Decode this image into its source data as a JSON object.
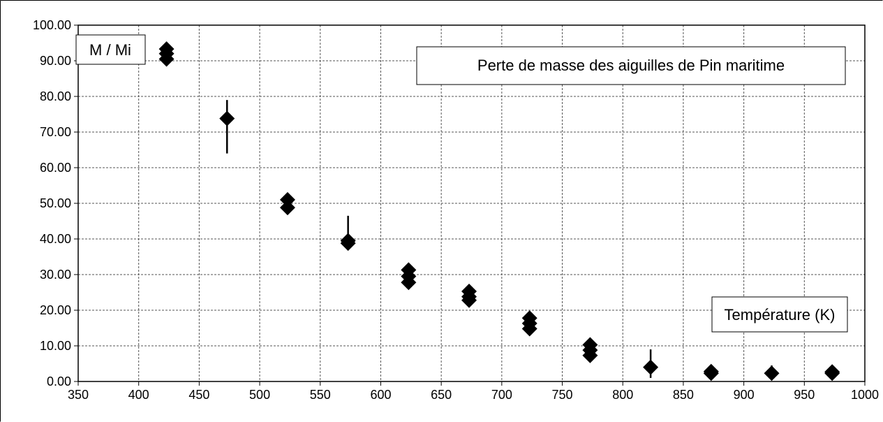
{
  "chart_data": {
    "type": "scatter",
    "title": "Perte de masse des aiguilles de Pin maritime",
    "xlabel": "Température (K)",
    "ylabel": "M / Mi",
    "xlim": [
      350,
      1000
    ],
    "ylim": [
      0,
      100
    ],
    "grid": true,
    "x_ticks": [
      "350",
      "400",
      "450",
      "500",
      "550",
      "600",
      "650",
      "700",
      "750",
      "800",
      "850",
      "900",
      "950",
      "1000"
    ],
    "y_ticks": [
      "0.00",
      "10.00",
      "20.00",
      "30.00",
      "40.00",
      "50.00",
      "60.00",
      "70.00",
      "80.00",
      "90.00",
      "100.00"
    ],
    "points": [
      {
        "x": 423,
        "y": 93.3
      },
      {
        "x": 423,
        "y": 92.0
      },
      {
        "x": 423,
        "y": 90.5
      },
      {
        "x": 473,
        "y": 73.8
      },
      {
        "x": 523,
        "y": 51.0
      },
      {
        "x": 523,
        "y": 48.8
      },
      {
        "x": 573,
        "y": 39.5
      },
      {
        "x": 573,
        "y": 38.8
      },
      {
        "x": 623,
        "y": 31.3
      },
      {
        "x": 623,
        "y": 29.5
      },
      {
        "x": 623,
        "y": 27.8
      },
      {
        "x": 673,
        "y": 25.3
      },
      {
        "x": 673,
        "y": 23.8
      },
      {
        "x": 673,
        "y": 22.8
      },
      {
        "x": 723,
        "y": 17.8
      },
      {
        "x": 723,
        "y": 16.3
      },
      {
        "x": 723,
        "y": 14.8
      },
      {
        "x": 773,
        "y": 10.3
      },
      {
        "x": 773,
        "y": 8.8
      },
      {
        "x": 773,
        "y": 7.3
      },
      {
        "x": 823,
        "y": 4.0
      },
      {
        "x": 873,
        "y": 2.8
      },
      {
        "x": 873,
        "y": 2.3
      },
      {
        "x": 923,
        "y": 2.3
      },
      {
        "x": 973,
        "y": 2.7
      },
      {
        "x": 973,
        "y": 2.3
      }
    ],
    "error_bars": [
      {
        "x": 473,
        "low": 64.0,
        "high": 79.0
      },
      {
        "x": 573,
        "low": 38.0,
        "high": 46.5
      },
      {
        "x": 823,
        "low": 1.0,
        "high": 9.0
      },
      {
        "x": 923,
        "low": 1.0,
        "high": 4.5
      }
    ]
  }
}
